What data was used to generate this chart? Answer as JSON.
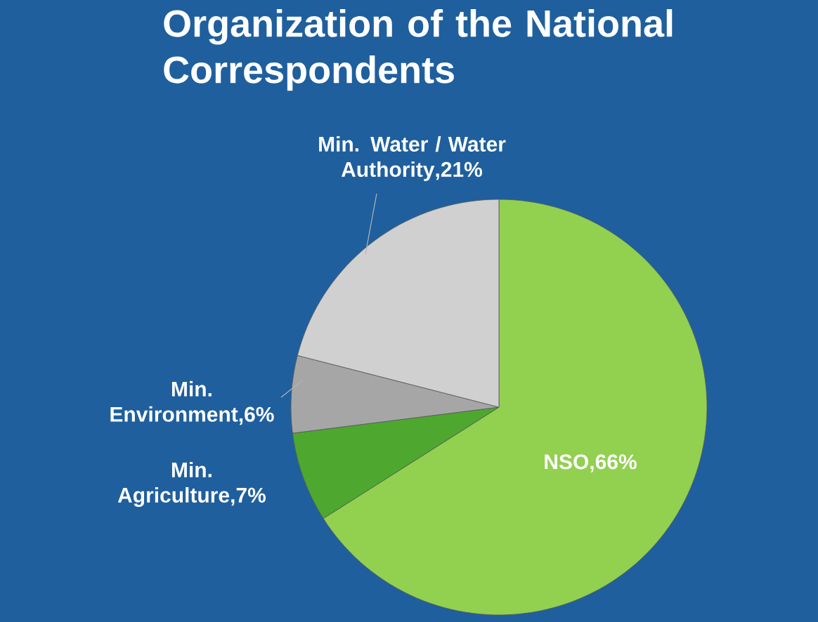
{
  "chart_data": {
    "type": "pie",
    "title": "Organization of the National Correspondents",
    "categories": [
      "NSO",
      "Min. Agriculture",
      "Min. Environment",
      "Min. Water / Water Authority"
    ],
    "values": [
      66,
      7,
      6,
      21
    ],
    "value_labels": [
      ",66%",
      ",7%",
      ",6%",
      ",21%"
    ],
    "colors": [
      "#92d050",
      "#4ea72e",
      "#a6a6a6",
      "#d0d0d0"
    ]
  }
}
